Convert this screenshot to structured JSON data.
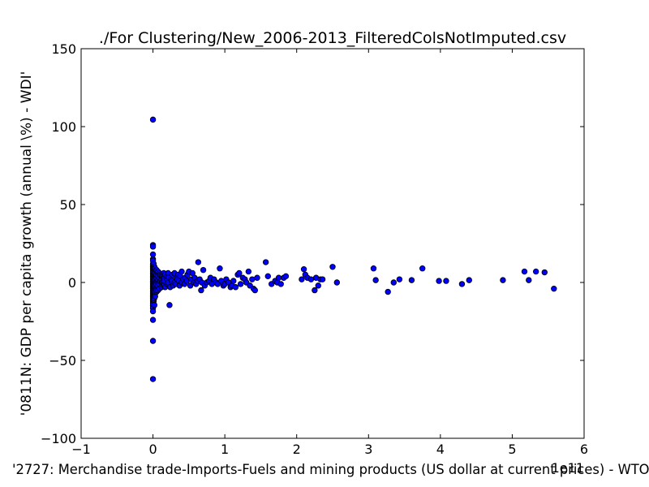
{
  "chart_data": {
    "type": "scatter",
    "title": "./For Clustering/New_2006-2013_FilteredColsNotImputed.csv",
    "xlabel": "'2727: Merchandise trade-Imports-Fuels and mining products (US dollar at current prices) - WTO'",
    "ylabel": "'0811N: GDP per capita growth  (annual \\%) - WDI'",
    "x_offset_label": "1e11",
    "xlim": [
      -1,
      6
    ],
    "ylim": [
      -100,
      150
    ],
    "x_ticks": [
      -1,
      0,
      1,
      2,
      3,
      4,
      5,
      6
    ],
    "y_ticks": [
      -100,
      -50,
      0,
      50,
      100,
      150
    ],
    "x_tick_labels": [
      "−1",
      "0",
      "1",
      "2",
      "3",
      "4",
      "5",
      "6"
    ],
    "y_tick_labels": [
      "−100",
      "−50",
      "0",
      "50",
      "100",
      "150"
    ],
    "grid": false,
    "marker_color": "#0000ff",
    "marker_edge_color": "#000000",
    "series": [
      {
        "x": [
          0.0,
          0.0,
          0.0,
          0.0,
          0.0,
          0.0,
          0.0,
          0.0,
          0.0,
          0.0,
          0.0,
          0.0,
          0.0,
          0.0,
          0.0,
          0.0,
          0.0,
          0.0,
          0.0,
          0.0,
          0.0,
          0.0,
          0.0,
          0.0,
          0.0,
          0.0,
          0.0,
          0.0,
          0.0,
          0.0,
          0.0,
          0.0,
          0.0,
          0.0,
          0.0,
          0.0,
          0.0,
          0.0,
          0.0,
          0.0,
          0.01,
          0.01,
          0.01,
          0.01,
          0.01,
          0.01,
          0.01,
          0.01,
          0.01,
          0.01,
          0.01,
          0.01,
          0.01,
          0.01,
          0.01,
          0.01,
          0.01,
          0.01,
          0.01,
          0.01,
          0.02,
          0.02,
          0.02,
          0.02,
          0.02,
          0.02,
          0.02,
          0.02,
          0.02,
          0.02,
          0.02,
          0.02,
          0.02,
          0.02,
          0.02,
          0.02,
          0.02,
          0.02,
          0.03,
          0.03,
          0.03,
          0.03,
          0.03,
          0.03,
          0.03,
          0.03,
          0.03,
          0.03,
          0.03,
          0.03,
          0.03,
          0.03,
          0.05,
          0.05,
          0.05,
          0.05,
          0.05,
          0.05,
          0.05,
          0.05,
          0.05,
          0.05,
          0.05,
          0.05,
          0.07,
          0.07,
          0.07,
          0.07,
          0.07,
          0.07,
          0.07,
          0.07,
          0.07,
          0.07,
          0.09,
          0.09,
          0.09,
          0.09,
          0.09,
          0.09,
          0.09,
          0.09,
          0.1,
          0.1,
          0.12,
          0.12,
          0.12,
          0.12,
          0.12,
          0.12,
          0.13,
          0.13,
          0.15,
          0.15,
          0.15,
          0.15,
          0.15,
          0.16,
          0.16,
          0.16,
          0.17,
          0.17,
          0.2,
          0.2,
          0.2,
          0.21,
          0.21,
          0.22,
          0.23,
          0.24,
          0.25,
          0.26,
          0.27,
          0.28,
          0.3,
          0.3,
          0.32,
          0.33,
          0.34,
          0.35,
          0.36,
          0.37,
          0.38,
          0.4,
          0.4,
          0.42,
          0.44,
          0.45,
          0.47,
          0.48,
          0.5,
          0.52,
          0.53,
          0.55,
          0.57,
          0.58,
          0.6,
          0.62,
          0.63,
          0.65,
          0.67,
          0.68,
          0.7,
          0.72,
          0.75,
          0.78,
          0.8,
          0.82,
          0.85,
          0.88,
          0.9,
          0.93,
          0.95,
          0.98,
          1.0,
          1.02,
          1.05,
          1.08,
          1.1,
          1.12,
          1.15,
          1.18,
          1.2,
          1.22,
          1.25,
          1.28,
          1.3,
          1.33,
          1.35,
          1.38,
          1.4,
          1.42,
          1.45,
          1.57,
          1.6,
          1.65,
          1.7,
          1.73,
          1.75,
          1.78,
          1.82,
          1.85,
          2.07,
          2.1,
          2.12,
          2.15,
          2.2,
          2.25,
          2.27,
          2.3,
          2.33,
          2.36,
          2.5,
          2.56,
          3.07,
          3.1,
          3.27,
          3.35,
          3.43,
          3.6,
          3.75,
          3.98,
          4.08,
          4.3,
          4.4,
          4.87,
          5.17,
          5.23,
          5.33,
          5.45,
          5.58
        ],
        "y": [
          104.5,
          24.0,
          23.0,
          18.0,
          15.0,
          12.0,
          10.0,
          8.0,
          6.0,
          4.0,
          2.0,
          0.5,
          -1.0,
          -3.0,
          -5.0,
          -7.0,
          -9.0,
          -11.0,
          -13.0,
          -15.0,
          -16.5,
          -18.5,
          -24.0,
          -37.5,
          -62.0,
          14.0,
          11.0,
          9.0,
          7.0,
          5.0,
          3.0,
          1.0,
          -2.0,
          -4.0,
          -6.0,
          -8.0,
          -10.0,
          -12.0,
          -14.0,
          0.0,
          12.0,
          10.0,
          8.0,
          6.0,
          4.0,
          2.0,
          0.0,
          -2.0,
          -4.0,
          -6.0,
          -8.0,
          -10.0,
          -12.0,
          9.0,
          5.0,
          1.0,
          -3.0,
          -7.0,
          -11.0,
          7.0,
          10.0,
          8.0,
          6.0,
          4.0,
          2.0,
          0.0,
          -2.0,
          -4.0,
          -6.0,
          -8.0,
          -10.0,
          -14.5,
          9.0,
          5.0,
          1.0,
          -3.0,
          -7.0,
          3.0,
          9.0,
          7.0,
          5.0,
          3.0,
          1.0,
          -1.0,
          -3.0,
          -5.0,
          -7.0,
          -9.0,
          6.0,
          2.0,
          -2.0,
          -6.0,
          8.0,
          6.0,
          4.0,
          2.0,
          0.0,
          -2.0,
          -4.0,
          -6.0,
          3.0,
          -1.0,
          -5.0,
          5.0,
          7.0,
          5.0,
          3.0,
          1.0,
          -1.0,
          -3.0,
          -5.0,
          2.0,
          -2.0,
          4.0,
          6.0,
          4.0,
          2.0,
          0.0,
          -2.0,
          -4.0,
          3.0,
          -1.0,
          5.0,
          1.0,
          5.0,
          3.0,
          1.0,
          -1.0,
          -3.0,
          2.0,
          4.0,
          0.0,
          6.0,
          4.0,
          2.0,
          0.0,
          -2.0,
          3.0,
          -1.0,
          1.0,
          5.0,
          -3.0,
          4.0,
          2.0,
          -1.0,
          6.0,
          0.0,
          3.0,
          -14.5,
          -3.0,
          2.0,
          1.0,
          5.0,
          -2.0,
          6.0,
          0.0,
          -1.0,
          3.0,
          2.0,
          5.0,
          1.0,
          -2.0,
          4.0,
          0.0,
          7.0,
          2.0,
          -1.0,
          3.0,
          1.0,
          5.0,
          7.0,
          -2.0,
          2.0,
          6.0,
          0.0,
          3.0,
          -1.0,
          1.0,
          13.0,
          2.0,
          -5.0,
          0.0,
          8.0,
          -2.0,
          0.0,
          1.0,
          3.0,
          -1.0,
          2.0,
          0.0,
          -1.0,
          9.0,
          1.0,
          -2.0,
          -1.0,
          2.0,
          0.0,
          -3.0,
          -2.0,
          1.0,
          -3.0,
          5.0,
          6.0,
          -1.0,
          3.0,
          2.0,
          0.0,
          7.0,
          -2.0,
          2.0,
          -4.0,
          -5.0,
          3.0,
          13.0,
          4.0,
          -1.0,
          1.0,
          0.0,
          3.0,
          -1.0,
          3.0,
          4.0,
          2.0,
          8.5,
          5.0,
          3.0,
          2.0,
          -5.0,
          3.0,
          -2.0,
          2.0,
          2.0,
          10.0,
          0.0,
          9.0,
          1.5,
          -6.0,
          0.0,
          2.0,
          1.5,
          9.0,
          1.0,
          1.0,
          -1.0,
          1.5,
          1.5,
          7.0,
          1.5,
          7.0,
          6.5,
          -4.0
        ]
      }
    ]
  }
}
